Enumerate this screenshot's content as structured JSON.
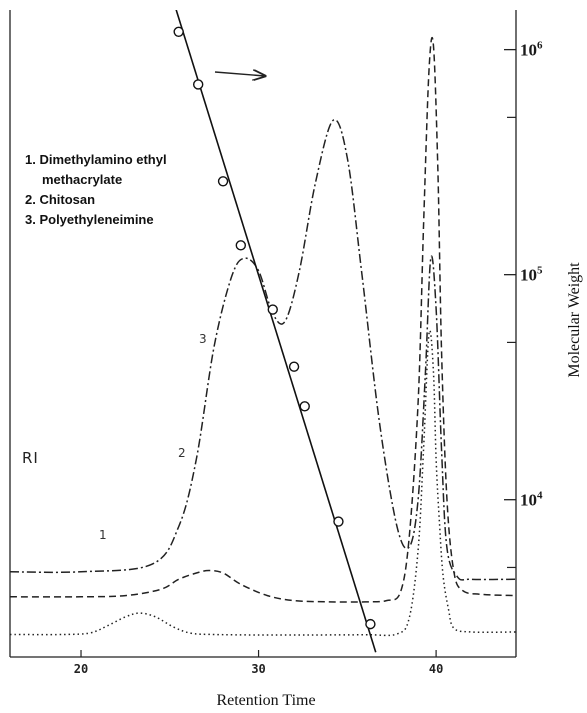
{
  "chart_data": {
    "type": "line",
    "xlabel": "Retention Time",
    "ylabel": "Molecular Weight",
    "xlim": [
      16,
      44.5
    ],
    "x_ticks": [
      "20",
      "30",
      "40"
    ],
    "x_tick_values": [
      20,
      30,
      40
    ],
    "y_axis": {
      "scale": "log",
      "range": [
        2000,
        1500000
      ],
      "major_ticks": [
        {
          "value": 10000,
          "base": "10",
          "exp": "4"
        },
        {
          "value": 100000,
          "base": "10",
          "exp": "5"
        },
        {
          "value": 1000000,
          "base": "10",
          "exp": "6"
        }
      ],
      "minor_ticks": [
        5000,
        50000,
        500000
      ]
    },
    "baseline_label": "RI",
    "legend": [
      "1. Dimethylamino ethyl",
      "methacrylate",
      "2. Chitosan",
      "3. Polyethyleneimine"
    ],
    "series": [
      {
        "name": "1",
        "style": "dotted",
        "detector_response": true,
        "x": [
          16,
          19,
          20.5,
          21.5,
          22.5,
          23.3,
          24.2,
          25.2,
          26.2,
          27.5,
          30,
          33,
          36,
          37.8,
          38.5,
          39.0,
          39.3,
          39.6,
          39.85,
          40.0,
          40.2,
          40.4,
          40.7,
          41.0,
          42,
          44.5
        ],
        "y": [
          5,
          5,
          5.6,
          8.5,
          12,
          13.5,
          12,
          8,
          5.5,
          5,
          4.8,
          4.8,
          4.9,
          5.2,
          12,
          40,
          80,
          125,
          110,
          75,
          48,
          28,
          15,
          7.5,
          6,
          6
        ]
      },
      {
        "name": "2",
        "style": "dashed",
        "detector_response": true,
        "x": [
          16,
          20,
          22.5,
          24.5,
          25.5,
          26.5,
          27.2,
          28.0,
          29.0,
          30.5,
          32,
          34,
          36,
          37.2,
          38,
          38.5,
          39.0,
          39.3,
          39.6,
          39.85,
          40.1,
          40.3,
          40.6,
          41.0,
          41.5,
          42.5,
          44.5
        ],
        "y": [
          20,
          20,
          20.5,
          23,
          27,
          29.5,
          30.5,
          29.5,
          25,
          20.5,
          18.5,
          18,
          18,
          18.5,
          22,
          45,
          100,
          170,
          230,
          240,
          190,
          120,
          60,
          30,
          22.5,
          21,
          20.5
        ]
      },
      {
        "name": "3",
        "style": "dash-dot",
        "detector_response": true,
        "x": [
          16,
          20,
          24,
          25.5,
          26.5,
          27.5,
          28.5,
          29.2,
          30.0,
          30.8,
          31.5,
          32.3,
          33.2,
          34.2,
          35.0,
          35.8,
          36.8,
          37.8,
          38.5,
          39.0,
          39.4,
          39.7,
          40.0,
          40.3,
          40.6,
          41.2,
          42,
          44.5
        ],
        "y": [
          30,
          30,
          33,
          48,
          75,
          120,
          148,
          155,
          150,
          133,
          130,
          150,
          185,
          210,
          195,
          150,
          90,
          48,
          40,
          60,
          110,
          155,
          135,
          80,
          40,
          28,
          27,
          27
        ]
      },
      {
        "name": "calibration",
        "style": "solid-with-markers",
        "markers_x": [
          25.5,
          26.6,
          28.0,
          29.0,
          30.8,
          32.0,
          32.6,
          34.5,
          36.3
        ],
        "markers_y": [
          1200000,
          700000,
          260000,
          135000,
          70000,
          39000,
          26000,
          8000,
          2800
        ],
        "line_x": [
          25.2,
          36.6
        ],
        "line_y": [
          1650000,
          2100
        ]
      }
    ]
  }
}
